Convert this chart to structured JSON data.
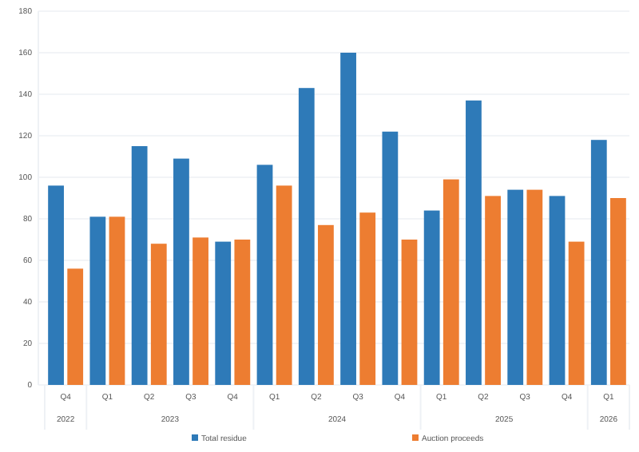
{
  "chart_data": {
    "type": "bar",
    "categories": [
      "Q4",
      "Q1",
      "Q2",
      "Q3",
      "Q4",
      "Q1",
      "Q2",
      "Q3",
      "Q4",
      "Q1",
      "Q2",
      "Q3",
      "Q4",
      "Q1"
    ],
    "series": [
      {
        "name": "Total residue",
        "color": "#2e7ab8",
        "values": [
          96,
          81,
          115,
          109,
          69,
          106,
          143,
          160,
          122,
          84,
          137,
          94,
          91,
          118
        ]
      },
      {
        "name": "Auction proceeds",
        "color": "#ed7d31",
        "values": [
          56,
          81,
          68,
          71,
          70,
          96,
          77,
          83,
          70,
          99,
          91,
          94,
          69,
          90
        ]
      }
    ],
    "annotations": [
      "2022",
      "2023",
      "2024",
      "2025",
      "2026"
    ],
    "ylim": [
      0,
      180
    ],
    "yticks": [
      0,
      20,
      40,
      60,
      80,
      100,
      120,
      140,
      160,
      180
    ],
    "grid": "y",
    "legend": "bottom"
  }
}
